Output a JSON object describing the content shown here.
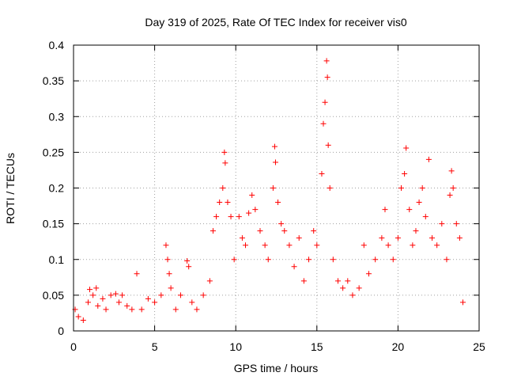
{
  "chart_data": {
    "type": "scatter",
    "title": "Day 319 of 2025, Rate Of TEC Index for receiver vis0",
    "xlabel": "GPS time / hours",
    "ylabel": "ROTI / TECUs",
    "xlim": [
      0,
      25
    ],
    "ylim": [
      0,
      0.4
    ],
    "xticks": [
      0,
      5,
      10,
      15,
      20,
      25
    ],
    "xtick_labels": [
      "0",
      "5",
      "10",
      "15",
      "20",
      "25"
    ],
    "yticks": [
      0,
      0.05,
      0.1,
      0.15,
      0.2,
      0.25,
      0.3,
      0.35,
      0.4
    ],
    "ytick_labels": [
      "0",
      "0.05",
      "0.1",
      "0.15",
      "0.2",
      "0.25",
      "0.3",
      "0.35",
      "0.4"
    ],
    "grid": true,
    "marker": "+",
    "color": "#ff0000",
    "series": [
      {
        "points": [
          [
            0.1,
            0.03
          ],
          [
            0.3,
            0.02
          ],
          [
            0.6,
            0.015
          ],
          [
            0.9,
            0.04
          ],
          [
            1.0,
            0.058
          ],
          [
            1.2,
            0.05
          ],
          [
            1.4,
            0.06
          ],
          [
            1.5,
            0.035
          ],
          [
            1.8,
            0.045
          ],
          [
            2.0,
            0.03
          ],
          [
            2.3,
            0.05
          ],
          [
            2.6,
            0.052
          ],
          [
            2.8,
            0.04
          ],
          [
            3.0,
            0.05
          ],
          [
            3.3,
            0.035
          ],
          [
            3.6,
            0.03
          ],
          [
            3.9,
            0.08
          ],
          [
            4.2,
            0.03
          ],
          [
            4.6,
            0.045
          ],
          [
            5.0,
            0.04
          ],
          [
            5.4,
            0.05
          ],
          [
            5.7,
            0.12
          ],
          [
            5.8,
            0.1
          ],
          [
            5.9,
            0.08
          ],
          [
            6.0,
            0.06
          ],
          [
            6.3,
            0.03
          ],
          [
            6.6,
            0.05
          ],
          [
            7.0,
            0.098
          ],
          [
            7.1,
            0.09
          ],
          [
            7.3,
            0.04
          ],
          [
            7.6,
            0.03
          ],
          [
            8.0,
            0.05
          ],
          [
            8.4,
            0.07
          ],
          [
            8.6,
            0.14
          ],
          [
            8.8,
            0.16
          ],
          [
            9.0,
            0.18
          ],
          [
            9.2,
            0.2
          ],
          [
            9.3,
            0.25
          ],
          [
            9.35,
            0.235
          ],
          [
            9.5,
            0.18
          ],
          [
            9.7,
            0.16
          ],
          [
            9.9,
            0.1
          ],
          [
            10.2,
            0.16
          ],
          [
            10.4,
            0.13
          ],
          [
            10.6,
            0.12
          ],
          [
            10.8,
            0.165
          ],
          [
            11.0,
            0.19
          ],
          [
            11.2,
            0.17
          ],
          [
            11.5,
            0.14
          ],
          [
            11.8,
            0.12
          ],
          [
            12.0,
            0.1
          ],
          [
            12.3,
            0.2
          ],
          [
            12.4,
            0.258
          ],
          [
            12.45,
            0.236
          ],
          [
            12.6,
            0.18
          ],
          [
            12.8,
            0.15
          ],
          [
            13.0,
            0.14
          ],
          [
            13.3,
            0.12
          ],
          [
            13.6,
            0.09
          ],
          [
            13.9,
            0.13
          ],
          [
            14.2,
            0.07
          ],
          [
            14.5,
            0.1
          ],
          [
            14.8,
            0.14
          ],
          [
            15.0,
            0.12
          ],
          [
            15.3,
            0.22
          ],
          [
            15.4,
            0.29
          ],
          [
            15.5,
            0.32
          ],
          [
            15.6,
            0.378
          ],
          [
            15.65,
            0.355
          ],
          [
            15.7,
            0.26
          ],
          [
            15.8,
            0.2
          ],
          [
            16.0,
            0.1
          ],
          [
            16.3,
            0.07
          ],
          [
            16.6,
            0.06
          ],
          [
            16.9,
            0.07
          ],
          [
            17.2,
            0.05
          ],
          [
            17.6,
            0.06
          ],
          [
            17.9,
            0.12
          ],
          [
            18.2,
            0.08
          ],
          [
            18.6,
            0.1
          ],
          [
            19.0,
            0.13
          ],
          [
            19.2,
            0.17
          ],
          [
            19.4,
            0.12
          ],
          [
            19.7,
            0.1
          ],
          [
            20.0,
            0.13
          ],
          [
            20.2,
            0.2
          ],
          [
            20.4,
            0.22
          ],
          [
            20.5,
            0.256
          ],
          [
            20.7,
            0.17
          ],
          [
            20.9,
            0.12
          ],
          [
            21.1,
            0.14
          ],
          [
            21.3,
            0.18
          ],
          [
            21.5,
            0.2
          ],
          [
            21.7,
            0.16
          ],
          [
            21.9,
            0.24
          ],
          [
            22.1,
            0.13
          ],
          [
            22.4,
            0.12
          ],
          [
            22.7,
            0.15
          ],
          [
            23.0,
            0.1
          ],
          [
            23.2,
            0.19
          ],
          [
            23.3,
            0.224
          ],
          [
            23.4,
            0.2
          ],
          [
            23.6,
            0.15
          ],
          [
            23.8,
            0.13
          ],
          [
            24.0,
            0.04
          ]
        ]
      }
    ]
  }
}
